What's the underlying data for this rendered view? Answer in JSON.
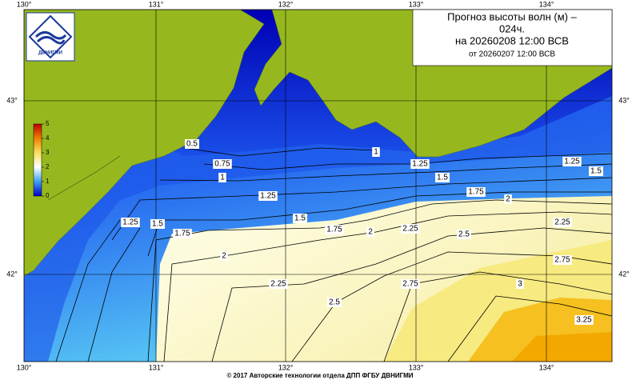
{
  "title": {
    "line1": "Прогноз высоты волн (м) –",
    "line2": "024ч.",
    "line3": "на 20260208 12:00 ВСВ",
    "line4": "от 20260207 12:00 ВСВ"
  },
  "logo": "ДВНИГМИ",
  "lon_labels": [
    "130°",
    "131°",
    "132°",
    "133°",
    "134°"
  ],
  "lat_labels": [
    "43°",
    "42°"
  ],
  "colorbar": {
    "ticks": [
      0,
      1,
      2,
      3,
      4,
      5
    ]
  },
  "contour_labels": [
    0.5,
    0.75,
    1,
    1,
    1.25,
    1.25,
    1.5,
    1.5,
    1.75,
    2,
    1.25,
    1.25,
    1.5,
    1.5,
    1.75,
    1.75,
    2,
    2.25,
    2.25,
    2.5,
    2,
    2.75,
    3,
    2.25,
    2.5,
    2.75,
    3.25
  ],
  "footer": "© 2017 Авторские технологии отдела ДПП ФГБУ ДВНИГМИ"
}
